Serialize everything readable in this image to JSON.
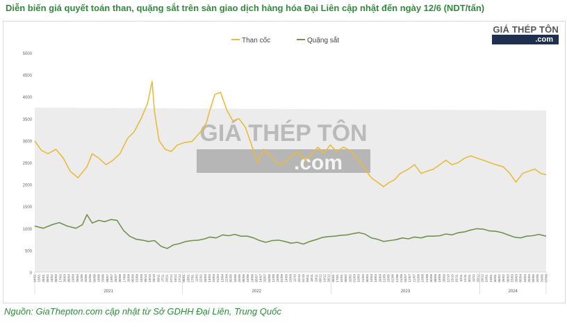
{
  "title": "Diễn biến giá quyết toán than, quặng sắt trên sàn giao dịch hàng hóa Đại Liên cập nhật đến ngày 12/6 (NDT/tấn)",
  "source": "Nguồn: GiaThepton.com cập nhật từ Sở GDHH Đại Liên, Trung Quốc",
  "brand": {
    "top": "GIÁ THÉP TÔN",
    "bottom": ".com"
  },
  "watermark": {
    "line1": "GIÁ THÉP TÔN",
    "line2": ".com"
  },
  "colors": {
    "coke": "#e8bb3a",
    "ore": "#70924e",
    "title": "#2e8b3a",
    "area": "#e6e6e6"
  },
  "chart_data": {
    "type": "line",
    "ylim": [
      0,
      5000
    ],
    "yticks": [
      0,
      500,
      1000,
      1500,
      2000,
      2500,
      3000,
      3500,
      4000,
      4500,
      5000
    ],
    "year_labels": [
      "2021",
      "2022",
      "2023",
      "2024"
    ],
    "x_tick_labels": [
      "04/01",
      "15/01",
      "28/01",
      "09/02",
      "24/02",
      "08/03",
      "17/03",
      "26/03",
      "08/04",
      "19/04",
      "28/04",
      "11/05",
      "20/05",
      "31/05",
      "09/06",
      "18/06",
      "29/06",
      "08/07",
      "19/07",
      "28/07",
      "06/08",
      "17/08",
      "26/08",
      "06/09",
      "15/09",
      "24/09",
      "08/10",
      "19/10",
      "28/10",
      "08/11",
      "17/11",
      "26/11",
      "07/12",
      "16/12",
      "27/12",
      "06/01",
      "18/01",
      "27/01",
      "11/02",
      "22/02",
      "03/03",
      "14/03",
      "23/03",
      "01/04",
      "13/04",
      "22/04",
      "05/05",
      "16/05",
      "25/05",
      "06/06",
      "15/06",
      "24/06",
      "05/07",
      "14/07",
      "25/07",
      "03/08",
      "12/08",
      "23/08",
      "01/09",
      "14/09",
      "23/09",
      "11/10",
      "20/10",
      "31/10",
      "09/11",
      "18/11",
      "29/11",
      "08/12",
      "19/12",
      "28/12",
      "06/01",
      "17/01",
      "31/01",
      "09/02",
      "20/02",
      "01/03",
      "10/03",
      "21/03",
      "30/03",
      "10/04",
      "19/04",
      "28/04",
      "12/05",
      "23/05",
      "01/06",
      "12/06",
      "21/06",
      "03/07",
      "12/07",
      "21/07",
      "01/08",
      "10/08",
      "21/08",
      "30/08",
      "08/09",
      "19/09",
      "28/09",
      "12/10",
      "23/10",
      "01/11",
      "10/11",
      "21/11",
      "30/11",
      "11/12",
      "20/12",
      "29/12",
      "10/01",
      "19/01",
      "30/01",
      "08/02",
      "26/02",
      "06/03",
      "15/03",
      "26/03",
      "05/04",
      "16/04",
      "25/04",
      "09/05",
      "20/05",
      "29/05",
      "07/06"
    ],
    "series": [
      {
        "name": "Than cốc",
        "x": [
          "2021-01-04",
          "2021-01-20",
          "2021-02-05",
          "2021-02-25",
          "2021-03-15",
          "2021-04-01",
          "2021-04-20",
          "2021-05-12",
          "2021-05-25",
          "2021-06-10",
          "2021-06-28",
          "2021-07-15",
          "2021-08-01",
          "2021-08-20",
          "2021-09-05",
          "2021-09-22",
          "2021-10-08",
          "2021-10-19",
          "2021-10-25",
          "2021-11-05",
          "2021-11-20",
          "2021-12-05",
          "2021-12-20",
          "2022-01-05",
          "2022-01-25",
          "2022-02-15",
          "2022-03-01",
          "2022-03-10",
          "2022-03-22",
          "2022-04-05",
          "2022-04-20",
          "2022-05-05",
          "2022-05-20",
          "2022-06-05",
          "2022-06-20",
          "2022-07-05",
          "2022-07-20",
          "2022-08-05",
          "2022-08-20",
          "2022-09-05",
          "2022-09-25",
          "2022-10-10",
          "2022-10-30",
          "2022-11-15",
          "2022-11-30",
          "2022-12-15",
          "2022-12-30",
          "2023-01-15",
          "2023-02-01",
          "2023-02-20",
          "2023-03-10",
          "2023-03-25",
          "2023-04-10",
          "2023-04-25",
          "2023-05-10",
          "2023-05-25",
          "2023-06-05",
          "2023-06-20",
          "2023-07-10",
          "2023-07-25",
          "2023-08-10",
          "2023-08-25",
          "2023-09-10",
          "2023-09-25",
          "2023-10-10",
          "2023-10-25",
          "2023-11-10",
          "2023-11-25",
          "2023-12-10",
          "2023-12-25",
          "2024-01-10",
          "2024-01-25",
          "2024-02-10",
          "2024-02-28",
          "2024-03-15",
          "2024-03-30",
          "2024-04-15",
          "2024-04-30",
          "2024-05-15",
          "2024-05-30",
          "2024-06-12"
        ],
        "values": [
          2990,
          2780,
          2700,
          2800,
          2600,
          2300,
          2150,
          2400,
          2700,
          2600,
          2450,
          2550,
          2700,
          3050,
          3200,
          3500,
          3850,
          4350,
          3650,
          3000,
          2800,
          2750,
          2900,
          2950,
          2980,
          3200,
          3400,
          3700,
          4050,
          4100,
          3700,
          3450,
          3500,
          3300,
          2900,
          2500,
          2800,
          2650,
          2500,
          2450,
          2650,
          2750,
          2550,
          2700,
          2850,
          2700,
          2900,
          2750,
          2850,
          2750,
          2550,
          2350,
          2150,
          2050,
          1950,
          2050,
          2100,
          2250,
          2350,
          2450,
          2250,
          2300,
          2350,
          2450,
          2550,
          2450,
          2500,
          2600,
          2650,
          2600,
          2550,
          2500,
          2450,
          2400,
          2250,
          2050,
          2250,
          2300,
          2350,
          2250,
          2220
        ]
      },
      {
        "name": "Quặng sắt",
        "x": [
          "2021-01-04",
          "2021-01-25",
          "2021-02-15",
          "2021-03-05",
          "2021-03-25",
          "2021-04-15",
          "2021-05-01",
          "2021-05-12",
          "2021-05-25",
          "2021-06-10",
          "2021-06-25",
          "2021-07-10",
          "2021-07-25",
          "2021-08-10",
          "2021-08-25",
          "2021-09-10",
          "2021-09-25",
          "2021-10-10",
          "2021-10-25",
          "2021-11-10",
          "2021-11-25",
          "2021-12-10",
          "2021-12-25",
          "2022-01-10",
          "2022-01-25",
          "2022-02-10",
          "2022-02-25",
          "2022-03-10",
          "2022-03-25",
          "2022-04-10",
          "2022-04-25",
          "2022-05-10",
          "2022-05-25",
          "2022-06-10",
          "2022-06-25",
          "2022-07-10",
          "2022-07-25",
          "2022-08-10",
          "2022-08-25",
          "2022-09-10",
          "2022-09-25",
          "2022-10-10",
          "2022-10-25",
          "2022-11-10",
          "2022-11-25",
          "2022-12-10",
          "2022-12-25",
          "2023-01-10",
          "2023-01-25",
          "2023-02-10",
          "2023-02-25",
          "2023-03-10",
          "2023-03-25",
          "2023-04-10",
          "2023-04-25",
          "2023-05-10",
          "2023-05-25",
          "2023-06-10",
          "2023-06-25",
          "2023-07-10",
          "2023-07-25",
          "2023-08-10",
          "2023-08-25",
          "2023-09-10",
          "2023-09-25",
          "2023-10-10",
          "2023-10-25",
          "2023-11-10",
          "2023-11-25",
          "2023-12-10",
          "2023-12-25",
          "2024-01-10",
          "2024-01-25",
          "2024-02-10",
          "2024-02-25",
          "2024-03-10",
          "2024-03-25",
          "2024-04-10",
          "2024-04-25",
          "2024-05-10",
          "2024-05-25",
          "2024-06-12"
        ],
        "values": [
          1050,
          1000,
          1080,
          1130,
          1050,
          1000,
          1080,
          1310,
          1120,
          1180,
          1150,
          1200,
          1180,
          950,
          820,
          750,
          730,
          700,
          720,
          590,
          540,
          620,
          650,
          700,
          720,
          730,
          760,
          800,
          780,
          850,
          830,
          860,
          820,
          820,
          780,
          720,
          680,
          720,
          730,
          700,
          660,
          680,
          640,
          700,
          740,
          790,
          810,
          820,
          840,
          850,
          880,
          900,
          870,
          780,
          750,
          700,
          720,
          740,
          780,
          760,
          800,
          780,
          820,
          820,
          830,
          870,
          850,
          900,
          920,
          960,
          990,
          980,
          940,
          930,
          900,
          850,
          800,
          780,
          820,
          830,
          860,
          820
        ]
      }
    ]
  }
}
